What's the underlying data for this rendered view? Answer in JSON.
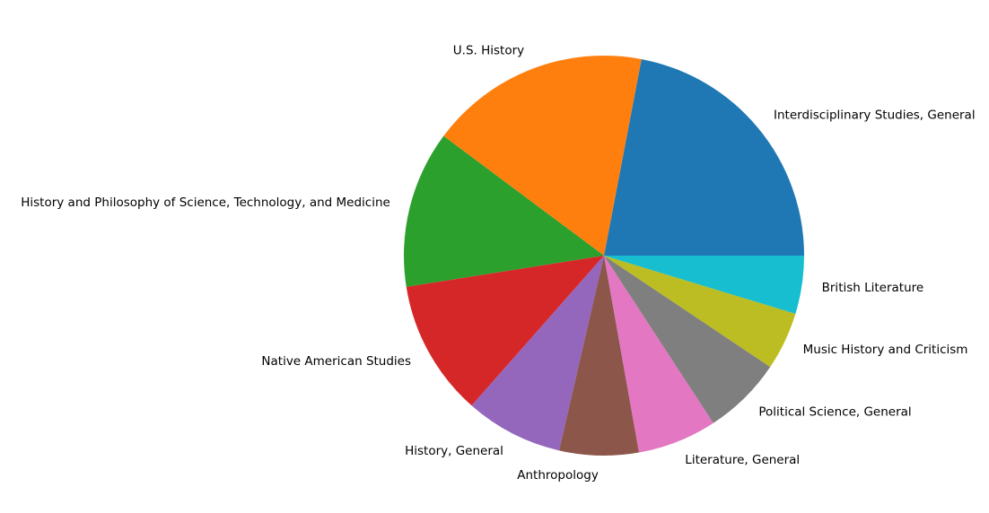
{
  "chart_data": {
    "type": "pie",
    "title": "",
    "start_angle_deg": 0,
    "direction": "counterclockwise",
    "legend": "none",
    "slices": [
      {
        "label": "Interdisciplinary Studies, General",
        "value": 22.0,
        "color": "#1f77b4"
      },
      {
        "label": "U.S. History",
        "value": 17.8,
        "color": "#ff7f0e"
      },
      {
        "label": "History and Philosophy of Science, Technology, and Medicine",
        "value": 12.7,
        "color": "#2ca02c"
      },
      {
        "label": "Native American Studies",
        "value": 11.0,
        "color": "#d62728"
      },
      {
        "label": "History, General",
        "value": 7.9,
        "color": "#9467bd"
      },
      {
        "label": "Anthropology",
        "value": 6.4,
        "color": "#8c564b"
      },
      {
        "label": "Literature, General",
        "value": 6.4,
        "color": "#e377c2"
      },
      {
        "label": "Political Science, General",
        "value": 6.4,
        "color": "#7f7f7f"
      },
      {
        "label": "Music History and Criticism",
        "value": 4.7,
        "color": "#bcbd22"
      },
      {
        "label": "British Literature",
        "value": 4.7,
        "color": "#17becf"
      }
    ]
  }
}
